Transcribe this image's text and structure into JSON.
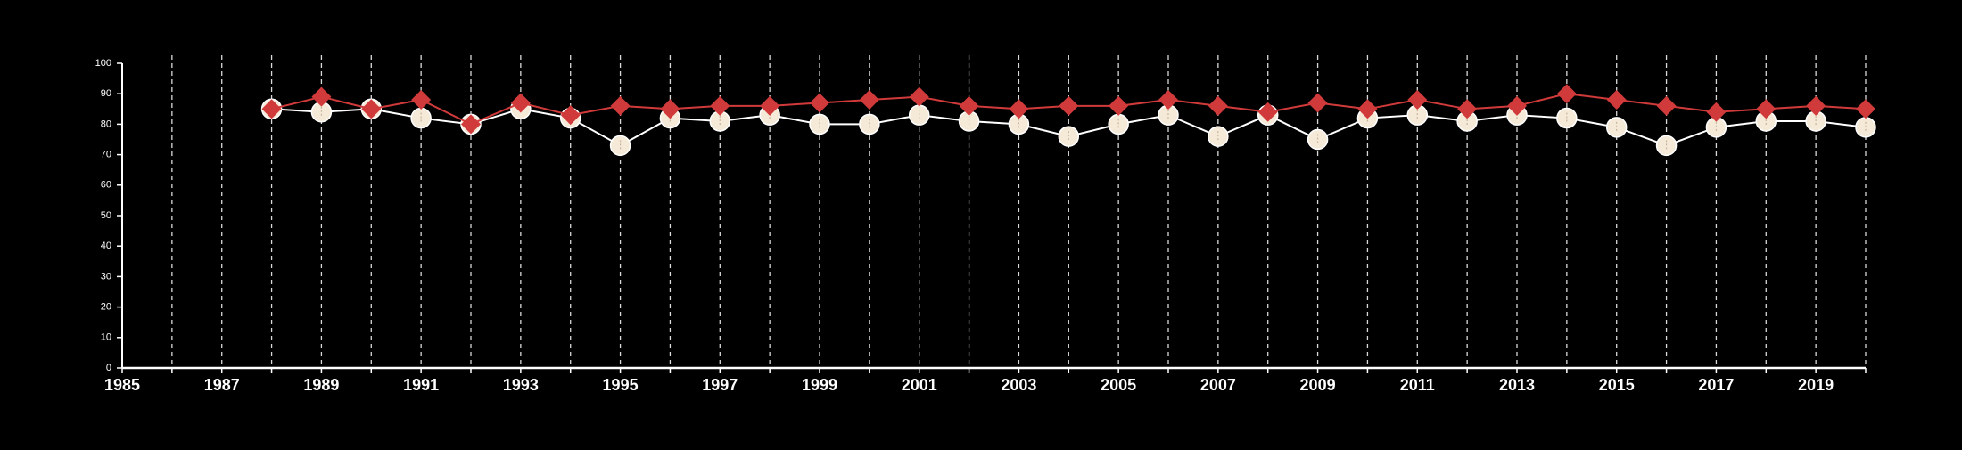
{
  "chart_data": {
    "type": "line",
    "title": "",
    "xlabel": "",
    "ylabel": "",
    "xlim": [
      1985,
      2020
    ],
    "ylim": [
      0,
      100
    ],
    "x_ticks": [
      1985,
      1987,
      1989,
      1991,
      1993,
      1995,
      1997,
      1999,
      2001,
      2003,
      2005,
      2007,
      2009,
      2011,
      2013,
      2015,
      2017,
      2019
    ],
    "y_ticks": [
      0,
      10,
      20,
      30,
      40,
      50,
      60,
      70,
      80,
      90,
      100
    ],
    "grid": "vertical dashed at every year",
    "legend": "none",
    "x": [
      1988,
      1989,
      1990,
      1991,
      1992,
      1993,
      1994,
      1995,
      1996,
      1997,
      1998,
      1999,
      2000,
      2001,
      2002,
      2003,
      2004,
      2005,
      2006,
      2007,
      2008,
      2009,
      2010,
      2011,
      2012,
      2013,
      2014,
      2015,
      2016,
      2017,
      2018,
      2019,
      2020
    ],
    "series": [
      {
        "marker": "circle",
        "color": "#f5e9d8",
        "line_color": "#ffffff",
        "values": [
          85,
          84,
          85,
          82,
          80,
          85,
          82,
          73,
          82,
          81,
          83,
          80,
          80,
          83,
          81,
          80,
          76,
          80,
          83,
          76,
          83,
          75,
          82,
          83,
          81,
          83,
          82,
          79,
          73,
          79,
          81,
          81,
          79
        ]
      },
      {
        "marker": "diamond",
        "color": "#d13a3a",
        "line_color": "#d13a3a",
        "values": [
          85,
          89,
          85,
          88,
          80,
          87,
          83,
          86,
          85,
          86,
          86,
          87,
          88,
          89,
          86,
          85,
          86,
          86,
          88,
          86,
          84,
          87,
          85,
          88,
          85,
          86,
          90,
          88,
          86,
          84,
          85,
          86,
          85
        ]
      }
    ]
  }
}
